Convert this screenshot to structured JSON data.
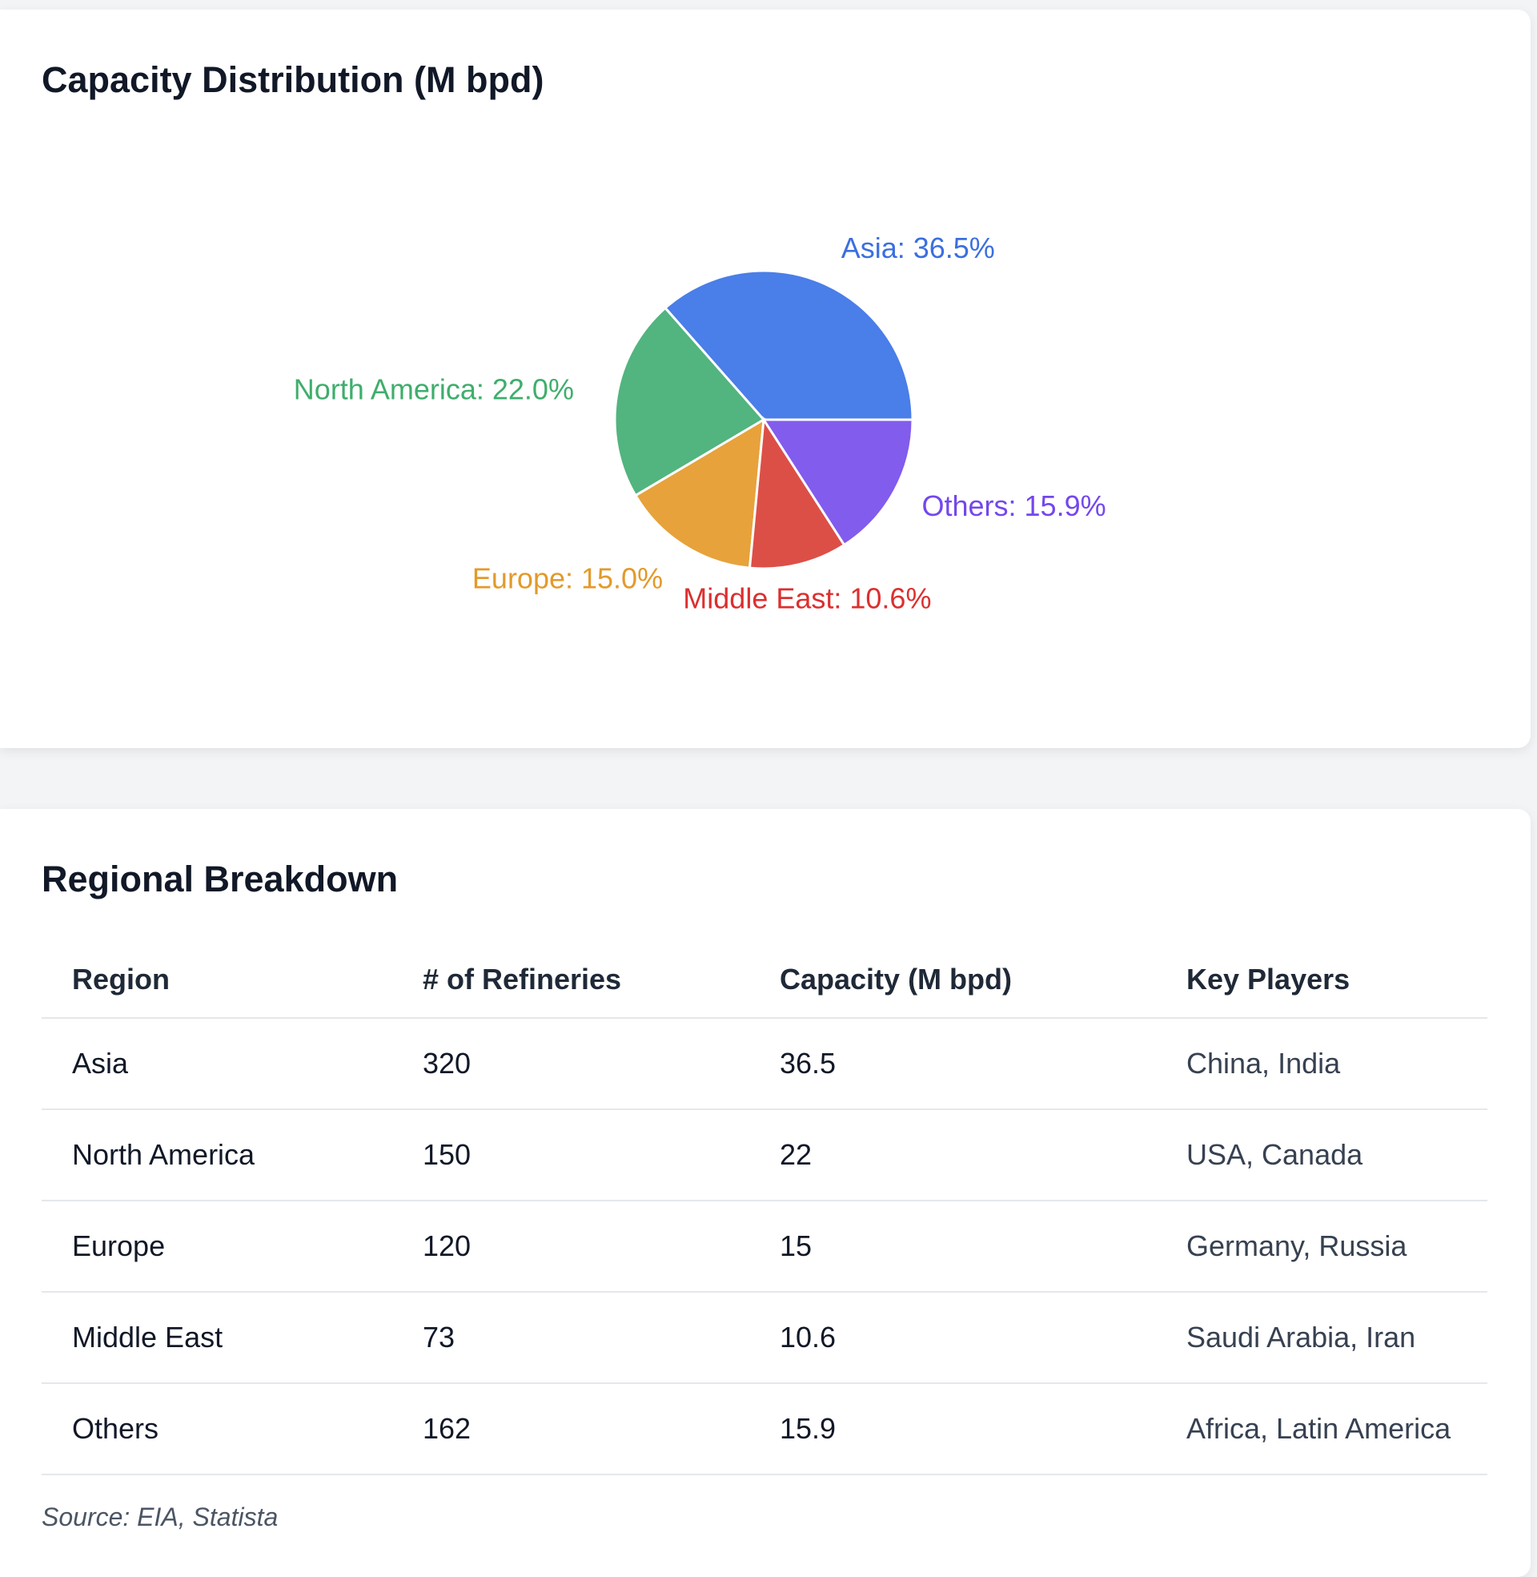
{
  "chart_card": {
    "title": "Capacity Distribution (M bpd)"
  },
  "chart_data": {
    "type": "pie",
    "title": "Capacity Distribution (M bpd)",
    "slices": [
      {
        "label": "Asia",
        "value": 36.5,
        "percent_label": "Asia: 36.5%",
        "color": "#4a7ee8"
      },
      {
        "label": "North America",
        "value": 22.0,
        "percent_label": "North America: 22.0%",
        "color": "#52b47f"
      },
      {
        "label": "Europe",
        "value": 15.0,
        "percent_label": "Europe: 15.0%",
        "color": "#e7a23b"
      },
      {
        "label": "Middle East",
        "value": 10.6,
        "percent_label": "Middle East: 10.6%",
        "color": "#dc4f47"
      },
      {
        "label": "Others",
        "value": 15.9,
        "percent_label": "Others: 15.9%",
        "color": "#825ced"
      }
    ],
    "label_colors": [
      "#3b6fe0",
      "#3fae6c",
      "#e39a2a",
      "#dc2f2f",
      "#7447ec"
    ]
  },
  "table_card": {
    "title": "Regional Breakdown",
    "headers": [
      "Region",
      "# of Refineries",
      "Capacity (M bpd)",
      "Key Players"
    ],
    "rows": [
      {
        "region": "Asia",
        "refineries": "320",
        "capacity": "36.5",
        "players": "China, India"
      },
      {
        "region": "North America",
        "refineries": "150",
        "capacity": "22",
        "players": "USA, Canada"
      },
      {
        "region": "Europe",
        "refineries": "120",
        "capacity": "15",
        "players": "Germany, Russia"
      },
      {
        "region": "Middle East",
        "refineries": "73",
        "capacity": "10.6",
        "players": "Saudi Arabia, Iran"
      },
      {
        "region": "Others",
        "refineries": "162",
        "capacity": "15.9",
        "players": "Africa, Latin America"
      }
    ],
    "source": "Source: EIA, Statista"
  }
}
